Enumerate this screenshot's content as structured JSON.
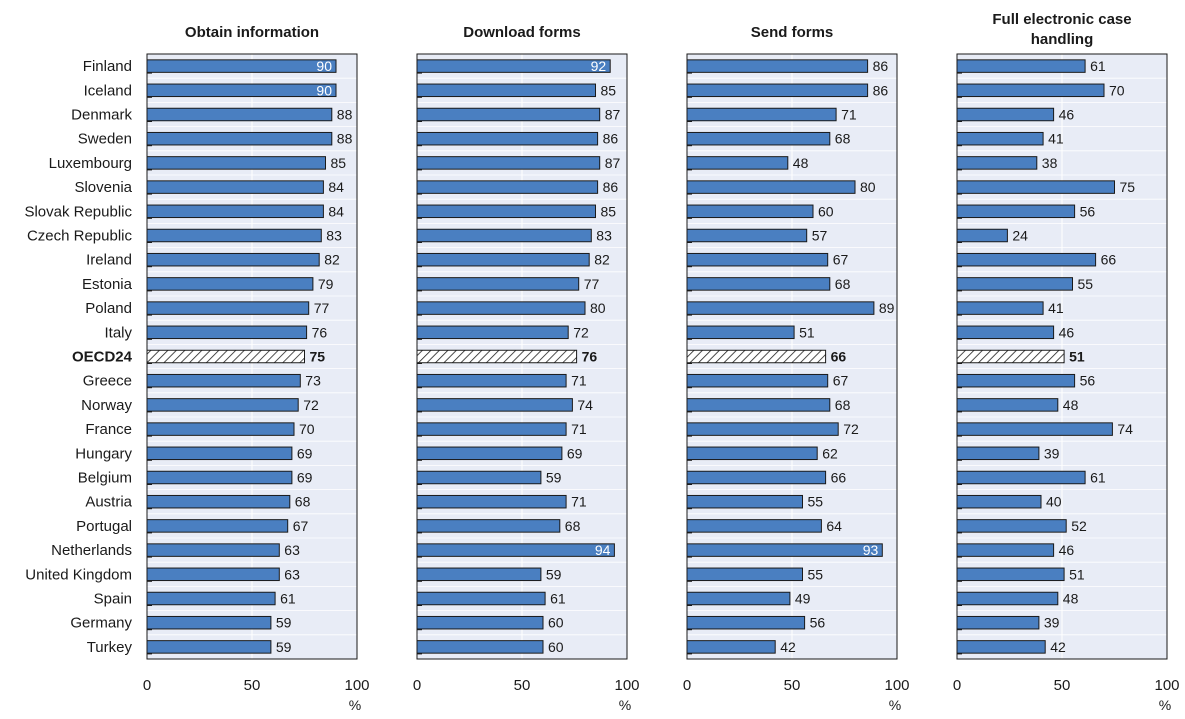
{
  "colors": {
    "panel_bg": "#e8ecf6",
    "bar_fill": "#4a7fc1",
    "bar_stroke": "#1a1a1a",
    "gridline": "#ffffff",
    "highlight_hatch": "#222222",
    "text": "#1a1a1a",
    "inside_label": "#ffffff"
  },
  "chart_data": {
    "type": "bar",
    "orientation": "horizontal",
    "x_unit_label": "%",
    "xlim": [
      0,
      100
    ],
    "xticks": [
      0,
      50,
      100
    ],
    "grid": true,
    "highlight_category": "OECD24",
    "categories": [
      "Finland",
      "Iceland",
      "Denmark",
      "Sweden",
      "Luxembourg",
      "Slovenia",
      "Slovak Republic",
      "Czech Republic",
      "Ireland",
      "Estonia",
      "Poland",
      "Italy",
      "OECD24",
      "Greece",
      "Norway",
      "France",
      "Hungary",
      "Belgium",
      "Austria",
      "Portugal",
      "Netherlands",
      "United Kingdom",
      "Spain",
      "Germany",
      "Turkey"
    ],
    "panels": [
      {
        "title": "Obtain information",
        "values": [
          90,
          90,
          88,
          88,
          85,
          84,
          84,
          83,
          82,
          79,
          77,
          76,
          75,
          73,
          72,
          70,
          69,
          69,
          68,
          67,
          63,
          63,
          61,
          59,
          59
        ]
      },
      {
        "title": "Download forms",
        "values": [
          92,
          85,
          87,
          86,
          87,
          86,
          85,
          83,
          82,
          77,
          80,
          72,
          76,
          71,
          74,
          71,
          69,
          59,
          71,
          68,
          94,
          59,
          61,
          60,
          60
        ]
      },
      {
        "title": "Send forms",
        "values": [
          86,
          86,
          71,
          68,
          48,
          80,
          60,
          57,
          67,
          68,
          89,
          51,
          66,
          67,
          68,
          72,
          62,
          66,
          55,
          64,
          93,
          55,
          49,
          56,
          42
        ]
      },
      {
        "title": "Full electronic case handling",
        "values": [
          61,
          70,
          46,
          41,
          38,
          75,
          56,
          24,
          66,
          55,
          41,
          46,
          51,
          56,
          48,
          74,
          39,
          61,
          40,
          52,
          46,
          51,
          48,
          39,
          42
        ]
      }
    ]
  }
}
